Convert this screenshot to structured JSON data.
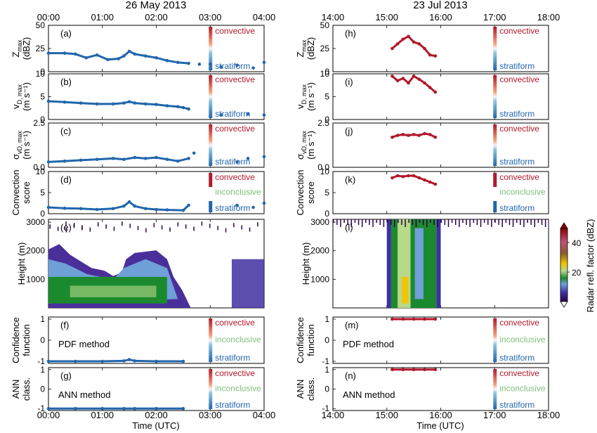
{
  "figure": {
    "left_title": "26 May 2013",
    "right_title": "23 Jul 2013",
    "xlabel": "Time (UTC)",
    "colorbar_label": "Radar refl. factor (dBZ)",
    "colorbar_ticks": [
      "20",
      "40"
    ]
  },
  "colors": {
    "convective": "#b2182b",
    "stratiform": "#2166ac",
    "inconclusive": "#7fbf7b",
    "axis": "#000000"
  },
  "legend_labels": {
    "convective": "convective",
    "inconclusive": "inconclusive",
    "stratiform": "stratiform"
  },
  "left_xticks": [
    "00:00",
    "01:00",
    "02:00",
    "03:00",
    "04:00"
  ],
  "right_xticks": [
    "14:00",
    "15:00",
    "16:00",
    "17:00",
    "18:00"
  ],
  "rows": [
    {
      "ylabel": "Z_max (dBZ)",
      "ylabel_main": "Z",
      "ylabel_sub": "max",
      "ylabel_unit": "(dBZ)",
      "yticks": [
        "0",
        "25",
        "50"
      ],
      "yrange": [
        0,
        50
      ],
      "left_letter": "(a)",
      "right_letter": "(h)"
    },
    {
      "ylabel": "v_D,max (m s^-1)",
      "ylabel_main": "v",
      "ylabel_sub": "D, max",
      "ylabel_unit": "(m s⁻¹)",
      "yticks": [
        "0",
        "5",
        "10"
      ],
      "yrange": [
        0,
        10
      ],
      "left_letter": "(b)",
      "right_letter": "(i)"
    },
    {
      "ylabel": "σ_vD,max (m s^-1)",
      "ylabel_main": "σ",
      "ylabel_sub": "vD, max",
      "ylabel_unit": "(m s⁻¹)",
      "yticks": [
        "0.0",
        "2.5"
      ],
      "yrange": [
        0,
        2.5
      ],
      "left_letter": "(c)",
      "right_letter": "(j)"
    },
    {
      "ylabel": "Convection score",
      "ylabel_main": "Convection",
      "ylabel_sub": "",
      "ylabel_unit": "score",
      "yticks": [
        "0",
        "5",
        "10"
      ],
      "yrange": [
        0,
        10
      ],
      "left_letter": "(d)",
      "right_letter": "(k)"
    },
    {
      "ylabel": "Height (m)",
      "ylabel_main": "Height (m)",
      "ylabel_sub": "",
      "ylabel_unit": "",
      "yticks": [
        "1000",
        "2000",
        "3000"
      ],
      "yrange": [
        0,
        3100
      ],
      "left_letter": "(e)",
      "right_letter": "(l)"
    },
    {
      "ylabel": "Confidence function",
      "ylabel_main": "Confidence",
      "ylabel_sub": "",
      "ylabel_unit": "function",
      "yticks": [
        "-1",
        "0",
        "1"
      ],
      "yrange": [
        -1.1,
        1.1
      ],
      "left_letter": "(f)",
      "right_letter": "(m)",
      "method": "PDF method"
    },
    {
      "ylabel": "ANN class.",
      "ylabel_main": "ANN",
      "ylabel_sub": "",
      "ylabel_unit": "class.",
      "yticks": [
        "-1",
        "0",
        "1"
      ],
      "yrange": [
        -1.1,
        1.1
      ],
      "left_letter": "(g)",
      "right_letter": "(n)",
      "method": "ANN method"
    }
  ],
  "chart_data": [
    {
      "type": "scatter",
      "panel": "a",
      "date": "26 May 2013",
      "ylabel": "Zmax (dBZ)",
      "xlim": [
        0,
        4
      ],
      "ylim": [
        0,
        50
      ],
      "x": [
        0.0,
        0.3,
        0.5,
        0.7,
        0.9,
        1.1,
        1.3,
        1.4,
        1.5,
        1.6,
        1.8,
        2.0,
        2.2,
        2.4,
        2.6,
        2.8,
        3.0,
        3.2,
        3.5,
        3.8,
        4.0
      ],
      "y": [
        20,
        20,
        19,
        15,
        18,
        13,
        14,
        17,
        22,
        19,
        17,
        15,
        12,
        10,
        9,
        8,
        8,
        5,
        7,
        4,
        10
      ]
    },
    {
      "type": "scatter",
      "panel": "b",
      "date": "26 May 2013",
      "ylabel": "vD,max (m s-1)",
      "xlim": [
        0,
        4
      ],
      "ylim": [
        0,
        10
      ],
      "x": [
        0.0,
        0.3,
        0.6,
        0.9,
        1.2,
        1.4,
        1.5,
        1.6,
        1.8,
        2.0,
        2.2,
        2.4,
        2.5,
        2.6,
        3.2,
        3.7,
        4.0
      ],
      "y": [
        4.0,
        3.8,
        3.6,
        3.4,
        3.4,
        3.6,
        3.9,
        3.6,
        3.4,
        3.3,
        3.0,
        2.8,
        2.6,
        2.3,
        1.0,
        1.2,
        1.0
      ]
    },
    {
      "type": "scatter",
      "panel": "c",
      "date": "26 May 2013",
      "ylabel": "σvD,max (m s-1)",
      "xlim": [
        0,
        4
      ],
      "ylim": [
        0,
        2.5
      ],
      "x": [
        0.0,
        0.3,
        0.6,
        0.9,
        1.2,
        1.4,
        1.6,
        1.8,
        2.0,
        2.2,
        2.4,
        2.6,
        2.7,
        3.5,
        3.7,
        4.0
      ],
      "y": [
        0.3,
        0.35,
        0.4,
        0.45,
        0.5,
        0.45,
        0.55,
        0.5,
        0.55,
        0.45,
        0.35,
        0.5,
        0.8,
        0.3,
        0.5,
        0.6
      ]
    },
    {
      "type": "scatter",
      "panel": "d",
      "date": "26 May 2013",
      "ylabel": "Convection score",
      "xlim": [
        0,
        4
      ],
      "ylim": [
        0,
        10
      ],
      "x": [
        0.0,
        0.3,
        0.6,
        0.9,
        1.2,
        1.4,
        1.5,
        1.6,
        1.8,
        2.0,
        2.2,
        2.5,
        2.6,
        3.5,
        3.8,
        4.0
      ],
      "y": [
        1.5,
        1.3,
        1.2,
        1.0,
        1.2,
        1.8,
        2.8,
        1.8,
        1.2,
        1.0,
        0.9,
        0.8,
        2.0,
        2.0,
        1.5,
        2.5
      ]
    },
    {
      "type": "heatmap",
      "panel": "e",
      "date": "26 May 2013",
      "ylabel": "Height (m)",
      "xlim": [
        0,
        4
      ],
      "ylim": [
        0,
        3100
      ],
      "zlabel": "Radar refl. factor (dBZ)",
      "zrange": [
        0,
        50
      ]
    },
    {
      "type": "scatter",
      "panel": "f",
      "date": "26 May 2013",
      "ylabel": "Confidence function",
      "method": "PDF method",
      "xlim": [
        0,
        4
      ],
      "ylim": [
        -1.1,
        1.1
      ],
      "x": [
        0.0,
        0.5,
        1.0,
        1.4,
        1.5,
        1.6,
        2.0,
        2.5
      ],
      "y": [
        -1.0,
        -1.0,
        -1.0,
        -0.98,
        -0.92,
        -0.98,
        -1.0,
        -1.0
      ]
    },
    {
      "type": "scatter",
      "panel": "g",
      "date": "26 May 2013",
      "ylabel": "ANN class.",
      "method": "ANN method",
      "xlim": [
        0,
        4
      ],
      "ylim": [
        -1.1,
        1.1
      ],
      "x": [
        0.0,
        0.5,
        1.0,
        1.4,
        1.6,
        2.0,
        2.5
      ],
      "y": [
        -1,
        -1,
        -1,
        -1,
        -1,
        -1,
        -1
      ]
    },
    {
      "type": "scatter",
      "panel": "h",
      "date": "23 Jul 2013",
      "ylabel": "Zmax (dBZ)",
      "xlim": [
        14,
        18
      ],
      "ylim": [
        0,
        50
      ],
      "x": [
        15.1,
        15.2,
        15.3,
        15.4,
        15.5,
        15.6,
        15.7,
        15.8,
        15.9
      ],
      "y": [
        25,
        30,
        35,
        38,
        32,
        30,
        25,
        18,
        17
      ]
    },
    {
      "type": "scatter",
      "panel": "i",
      "date": "23 Jul 2013",
      "ylabel": "vD,max (m s-1)",
      "xlim": [
        14,
        18
      ],
      "ylim": [
        0,
        10
      ],
      "x": [
        15.1,
        15.2,
        15.3,
        15.4,
        15.5,
        15.6,
        15.7,
        15.8,
        15.9
      ],
      "y": [
        9.5,
        8.5,
        9.0,
        8.0,
        9.5,
        8.8,
        8.0,
        7.0,
        6.0
      ]
    },
    {
      "type": "scatter",
      "panel": "j",
      "date": "23 Jul 2013",
      "ylabel": "σvD,max (m s-1)",
      "xlim": [
        14,
        18
      ],
      "ylim": [
        0,
        2.5
      ],
      "x": [
        15.1,
        15.2,
        15.3,
        15.4,
        15.5,
        15.6,
        15.7,
        15.8,
        15.9
      ],
      "y": [
        1.7,
        1.8,
        1.85,
        1.8,
        1.85,
        1.8,
        1.9,
        1.85,
        1.7
      ]
    },
    {
      "type": "scatter",
      "panel": "k",
      "date": "23 Jul 2013",
      "ylabel": "Convection score",
      "xlim": [
        14,
        18
      ],
      "ylim": [
        0,
        10
      ],
      "x": [
        15.1,
        15.2,
        15.3,
        15.4,
        15.5,
        15.6,
        15.7,
        15.8,
        15.9
      ],
      "y": [
        8.5,
        9.0,
        8.8,
        9.0,
        9.0,
        8.5,
        8.0,
        7.5,
        7.0
      ]
    },
    {
      "type": "heatmap",
      "panel": "l",
      "date": "23 Jul 2013",
      "ylabel": "Height (m)",
      "xlim": [
        14,
        18
      ],
      "ylim": [
        0,
        3100
      ],
      "zlabel": "Radar refl. factor (dBZ)",
      "zrange": [
        0,
        50
      ]
    },
    {
      "type": "scatter",
      "panel": "m",
      "date": "23 Jul 2013",
      "ylabel": "Confidence function",
      "method": "PDF method",
      "xlim": [
        14,
        18
      ],
      "ylim": [
        -1.1,
        1.1
      ],
      "x": [
        15.1,
        15.3,
        15.5,
        15.7,
        15.9
      ],
      "y": [
        1,
        1,
        1,
        1,
        1
      ]
    },
    {
      "type": "scatter",
      "panel": "n",
      "date": "23 Jul 2013",
      "ylabel": "ANN class.",
      "method": "ANN method",
      "xlim": [
        14,
        18
      ],
      "ylim": [
        -1.1,
        1.1
      ],
      "x": [
        15.1,
        15.3,
        15.5,
        15.7,
        15.9
      ],
      "y": [
        1,
        1,
        1,
        1,
        1
      ]
    }
  ]
}
